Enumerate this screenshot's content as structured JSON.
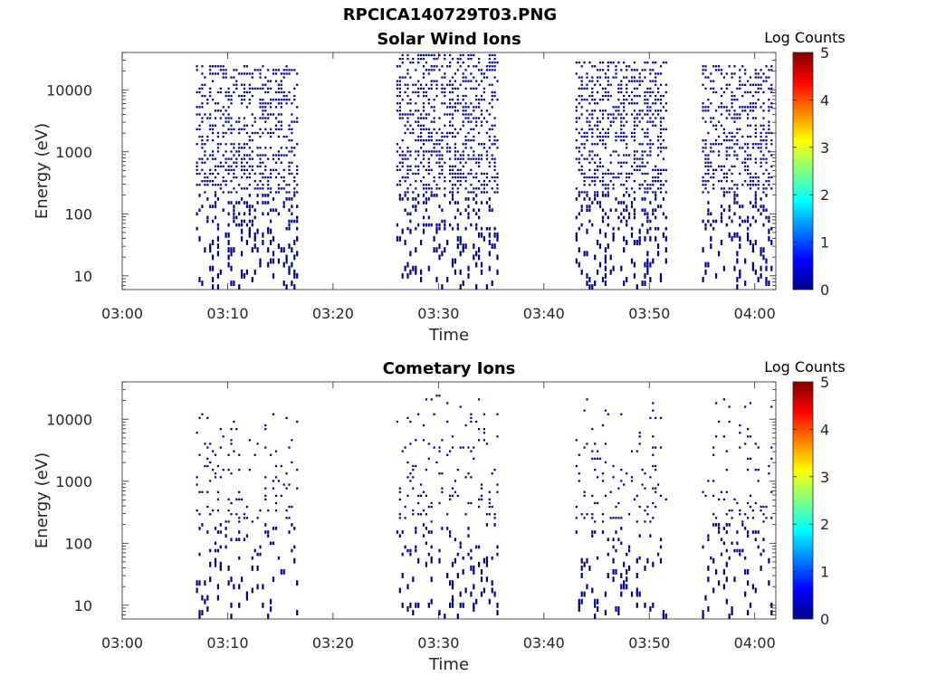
{
  "figure_title": "RPCICA140729T03.PNG",
  "colors": {
    "count_color": "#00008f",
    "axis_color": "#262626",
    "colormap": [
      "#00008f",
      "#0000ff",
      "#0080ff",
      "#00ffff",
      "#80ff80",
      "#ffff00",
      "#ff8000",
      "#ff0000",
      "#800000"
    ]
  },
  "chart_data": [
    {
      "type": "heatmap",
      "title": "Solar Wind Ions",
      "xlabel": "Time",
      "ylabel": "Energy (eV)",
      "yscale": "log",
      "ylim": [
        6,
        40000
      ],
      "xlim": [
        "03:00",
        "04:02"
      ],
      "xticks": [
        "03:00",
        "03:10",
        "03:20",
        "03:30",
        "03:40",
        "03:50",
        "04:00"
      ],
      "yticks": [
        "10",
        "100",
        "1000",
        "10000"
      ],
      "colorbar": {
        "label": "Log Counts",
        "range": [
          0,
          5
        ],
        "ticks": [
          "0",
          "1",
          "2",
          "3",
          "4",
          "5"
        ]
      },
      "legend": "none",
      "grid": false,
      "active_intervals": [
        {
          "start": "03:07",
          "end": "03:16",
          "emin": 10,
          "emax": 25000
        },
        {
          "start": "03:26",
          "end": "03:35",
          "emin": 10,
          "emax": 35000
        },
        {
          "start": "03:43",
          "end": "03:51",
          "emin": 10,
          "emax": 30000
        },
        {
          "start": "03:55",
          "end": "04:01",
          "emin": 10,
          "emax": 25000
        }
      ],
      "count_level": 0
    },
    {
      "type": "heatmap",
      "title": "Cometary Ions",
      "xlabel": "Time",
      "ylabel": "Energy (eV)",
      "yscale": "log",
      "ylim": [
        6,
        40000
      ],
      "xlim": [
        "03:00",
        "04:02"
      ],
      "xticks": [
        "03:00",
        "03:10",
        "03:20",
        "03:30",
        "03:40",
        "03:50",
        "04:00"
      ],
      "yticks": [
        "10",
        "100",
        "1000",
        "10000"
      ],
      "colorbar": {
        "label": "Log Counts",
        "range": [
          0,
          5
        ],
        "ticks": [
          "0",
          "1",
          "2",
          "3",
          "4",
          "5"
        ]
      },
      "legend": "none",
      "grid": false,
      "active_intervals": [
        {
          "start": "03:07",
          "end": "03:16",
          "emin": 10,
          "emax": 12000
        },
        {
          "start": "03:26",
          "end": "03:35",
          "emin": 10,
          "emax": 25000
        },
        {
          "start": "03:43",
          "end": "03:51",
          "emin": 10,
          "emax": 25000
        },
        {
          "start": "03:55",
          "end": "04:01",
          "emin": 10,
          "emax": 25000
        }
      ],
      "count_level": 0
    }
  ]
}
